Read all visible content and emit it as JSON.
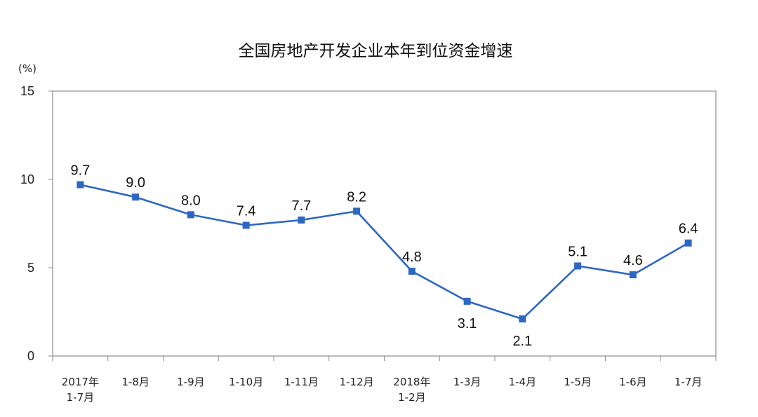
{
  "chart_data": {
    "type": "line",
    "title": "全国房地产开发企业本年到位资金增速",
    "ylabel": "(%)",
    "xlabel": "",
    "ylim": [
      0,
      15
    ],
    "yticks": [
      "0",
      "5",
      "10",
      "15"
    ],
    "grid": false,
    "legend": "none",
    "categories": [
      [
        "2017年",
        "1-7月"
      ],
      [
        "1-8月"
      ],
      [
        "1-9月"
      ],
      [
        "1-10月"
      ],
      [
        "1-11月"
      ],
      [
        "1-12月"
      ],
      [
        "2018年",
        "1-2月"
      ],
      [
        "1-3月"
      ],
      [
        "1-4月"
      ],
      [
        "1-5月"
      ],
      [
        "1-6月"
      ],
      [
        "1-7月"
      ]
    ],
    "series": [
      {
        "values": [
          9.7,
          9.0,
          8.0,
          7.4,
          7.7,
          8.2,
          4.8,
          3.1,
          2.1,
          5.1,
          4.6,
          6.4
        ],
        "labels": [
          "9.7",
          "9.0",
          "8.0",
          "7.4",
          "7.7",
          "8.2",
          "4.8",
          "3.1",
          "2.1",
          "5.1",
          "4.6",
          "6.4"
        ],
        "label_positions": [
          "above",
          "above",
          "above",
          "above",
          "above",
          "above",
          "above",
          "below",
          "below",
          "above",
          "above",
          "above"
        ]
      }
    ],
    "colors": {
      "line": "#2E67C2",
      "marker": "#2E67C2",
      "axis": "#8C8C8C"
    }
  }
}
